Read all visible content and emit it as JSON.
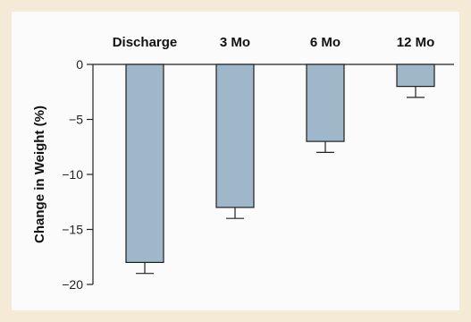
{
  "chart_data": {
    "type": "bar",
    "categories": [
      "Discharge",
      "3 Mo",
      "6 Mo",
      "12 Mo"
    ],
    "values": [
      -18,
      -13,
      -7,
      -2
    ],
    "error_lower": [
      -19,
      -14,
      -8,
      -3
    ],
    "ylabel": "Change in Weight (%)",
    "xlabel": "",
    "title": "",
    "ylim": [
      -20,
      0
    ],
    "yticks": [
      0,
      -5,
      -10,
      -15,
      -20
    ],
    "ytick_labels": [
      "0",
      "−5",
      "−10",
      "−15",
      "−20"
    ],
    "category_axis_position": "top",
    "grid": false,
    "colors": {
      "bar_fill": "#9fb8c9",
      "bar_stroke": "#1f1f1f",
      "panel": "#fbfbfb",
      "border": "#f5ead6"
    }
  }
}
